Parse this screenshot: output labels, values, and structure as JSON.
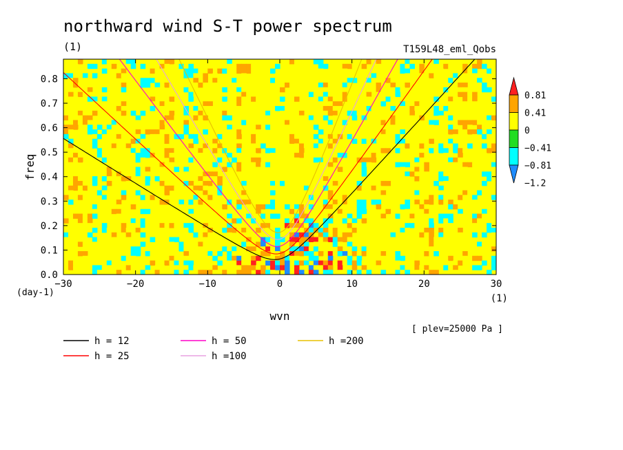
{
  "header": {
    "title": "northward wind S-T power spectrum",
    "subtitle_left": "(1)",
    "subtitle_right": "T159L48_eml_Qobs"
  },
  "footer": {
    "plev_note": "[ plev=25000 Pa ]"
  },
  "chart_data": {
    "type": "heatmap",
    "title": "northward wind S-T power spectrum",
    "xlabel": "wvn",
    "ylabel": "freq",
    "x_unit": "(1)",
    "y_unit": "(day-1)",
    "xlim": [
      -30,
      30
    ],
    "ylim": [
      0,
      0.88
    ],
    "xticks": [
      -30,
      -20,
      -10,
      0,
      10,
      20,
      30
    ],
    "yticks": [
      0.0,
      0.1,
      0.2,
      0.3,
      0.4,
      0.5,
      0.6,
      0.7,
      0.8
    ],
    "colorbar": {
      "levels": [
        -1.2,
        -0.81,
        -0.41,
        0,
        0.41,
        0.81
      ],
      "tick_labels": [
        "0.81",
        "0.41",
        "0",
        "−0.41",
        "−0.81",
        "−1.2"
      ],
      "colors": [
        "#1e8cff",
        "#00ffff",
        "#22dd22",
        "#ffff00",
        "#ffa500",
        "#ff2020"
      ],
      "extend": "both"
    },
    "field_note": "noisy field mostly between -0.41 and 0.41, with stronger anomalies near wvn -5..10, freq 0..0.3",
    "series": [
      {
        "name": "h = 12",
        "color": "#000000",
        "coef": 0.02545
      },
      {
        "name": "h = 25",
        "color": "#ff0000",
        "coef": 0.0344
      },
      {
        "name": "h = 50",
        "color": "#ff00c8",
        "coef": 0.0463
      },
      {
        "name": "h =100",
        "color": "#e8a0e0",
        "coef": 0.0578
      },
      {
        "name": "h =200",
        "color": "#e8c000",
        "coef": 0.0689
      }
    ],
    "legend_position": "bottom"
  }
}
